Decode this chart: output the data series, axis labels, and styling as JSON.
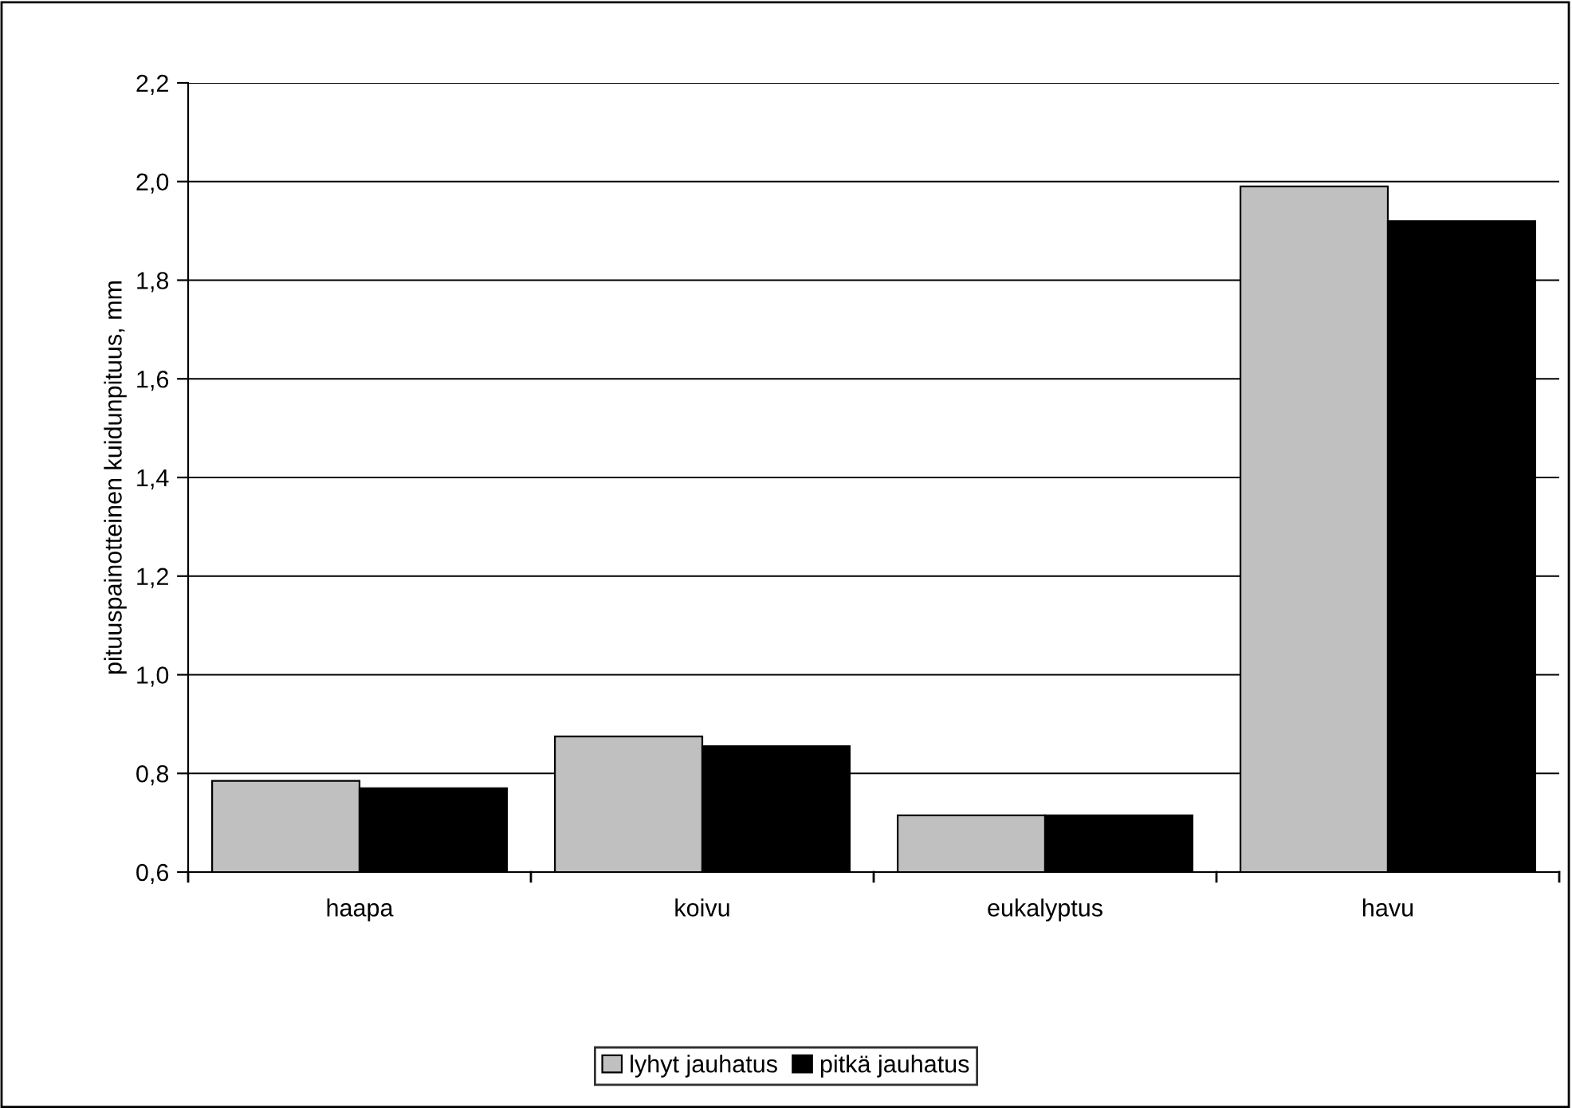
{
  "chart_data": {
    "type": "bar",
    "ylabel": "pituuspainotteinen kuidunpituus, mm",
    "categories": [
      "haapa",
      "koivu",
      "eukalyptus",
      "havu"
    ],
    "series": [
      {
        "name": "lyhyt jauhatus",
        "color": "#c0c0c0",
        "values": [
          0.785,
          0.875,
          0.715,
          1.99
        ]
      },
      {
        "name": "pitkä jauhatus",
        "color": "#000000",
        "values": [
          0.77,
          0.855,
          0.715,
          1.92
        ]
      }
    ],
    "ylim": [
      0.6,
      2.2
    ],
    "yticks": [
      {
        "value": 0.6,
        "label": "0,6"
      },
      {
        "value": 0.8,
        "label": "0,8"
      },
      {
        "value": 1.0,
        "label": "1,0"
      },
      {
        "value": 1.2,
        "label": "1,2"
      },
      {
        "value": 1.4,
        "label": "1,4"
      },
      {
        "value": 1.6,
        "label": "1,6"
      },
      {
        "value": 1.8,
        "label": "1,8"
      },
      {
        "value": 2.0,
        "label": "2,0"
      },
      {
        "value": 2.2,
        "label": "2,2"
      }
    ],
    "grid": "y",
    "legend": "bottom"
  }
}
